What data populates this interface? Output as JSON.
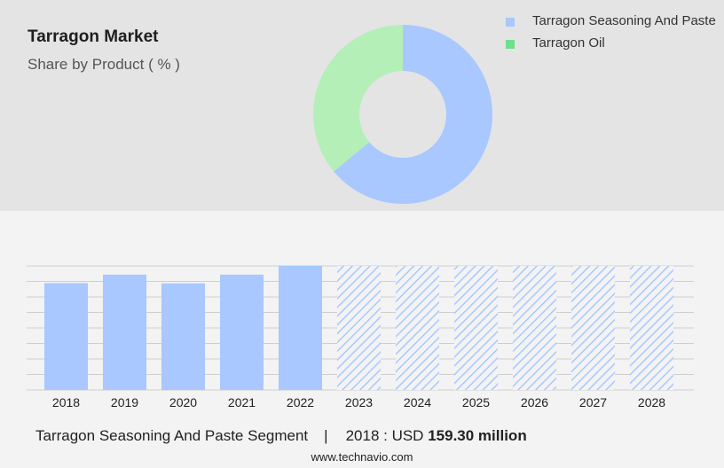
{
  "header": {
    "title": "Tarragon Market",
    "subtitle": "Share by Product ( % )"
  },
  "legend": {
    "items": [
      {
        "label": "Tarragon Seasoning And Paste",
        "color": "#a8c8ff"
      },
      {
        "label": "Tarragon Oil",
        "color": "#6ee08a"
      }
    ]
  },
  "chart_data": [
    {
      "type": "pie",
      "categories": [
        "Tarragon Seasoning And Paste",
        "Tarragon Oil"
      ],
      "values": [
        64,
        36
      ],
      "colors": [
        "#a8c8ff",
        "#b4efb8"
      ],
      "donut": true
    },
    {
      "type": "bar",
      "categories": [
        "2018",
        "2019",
        "2020",
        "2021",
        "2022",
        "2023",
        "2024",
        "2025",
        "2026",
        "2027",
        "2028"
      ],
      "values": [
        159.3,
        172,
        159,
        172,
        185,
        185,
        185,
        185,
        185,
        185,
        185
      ],
      "forecast_from": "2023",
      "color": "#a8c8ff",
      "grid": true
    }
  ],
  "footer": {
    "segment": "Tarragon Seasoning And Paste Segment",
    "separator": "|",
    "year_label": "2018 : USD",
    "amount": "159.30 million"
  },
  "source": "www.technavio.com"
}
